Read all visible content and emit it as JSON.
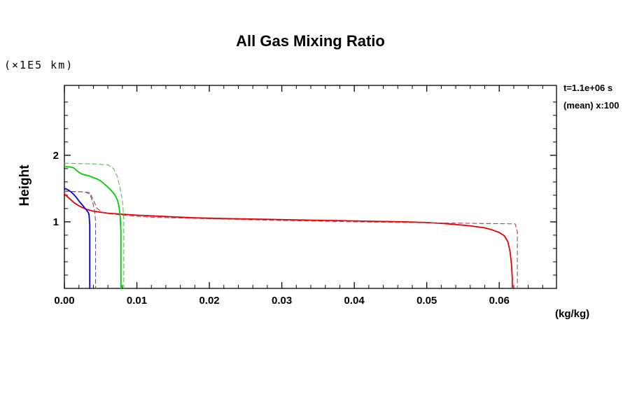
{
  "chart_data": {
    "type": "line",
    "title": "All Gas Mixing Ratio",
    "ylabel": "Height",
    "y_axis_unit": "(×1E5 km)",
    "x_axis_unit": "(kg/kg)",
    "annotations": [
      "t=1.1e+06 s",
      "(mean) x:100"
    ],
    "xlim": [
      0,
      0.0679
    ],
    "ylim": [
      0,
      3.05
    ],
    "xticks": [
      0.0,
      0.01,
      0.02,
      0.03,
      0.04,
      0.05,
      0.06
    ],
    "xtick_labels": [
      "0.00",
      "0.01",
      "0.02",
      "0.03",
      "0.04",
      "0.05",
      "0.06"
    ],
    "x_minor_step": 0.002,
    "yticks": [
      1,
      2
    ],
    "ytick_labels": [
      "1",
      "2"
    ],
    "y_minor_step": 0.2,
    "grid": false,
    "legend": false,
    "axis_color": "#000000",
    "series": [
      {
        "name": "red-gas-solid",
        "color": "#e60000",
        "dash": false,
        "points": [
          [
            0,
            1.42
          ],
          [
            0.0004,
            1.38
          ],
          [
            0.0008,
            1.34
          ],
          [
            0.0013,
            1.29
          ],
          [
            0.002,
            1.24
          ],
          [
            0.003,
            1.19
          ],
          [
            0.004,
            1.16
          ],
          [
            0.006,
            1.13
          ],
          [
            0.008,
            1.115
          ],
          [
            0.01,
            1.1
          ],
          [
            0.014,
            1.08
          ],
          [
            0.018,
            1.06
          ],
          [
            0.022,
            1.05
          ],
          [
            0.027,
            1.04
          ],
          [
            0.032,
            1.03
          ],
          [
            0.037,
            1.02
          ],
          [
            0.042,
            1.01
          ],
          [
            0.047,
            1.0
          ],
          [
            0.05,
            0.99
          ],
          [
            0.053,
            0.97
          ],
          [
            0.056,
            0.94
          ],
          [
            0.058,
            0.91
          ],
          [
            0.059,
            0.88
          ],
          [
            0.06,
            0.84
          ],
          [
            0.0607,
            0.79
          ],
          [
            0.0612,
            0.7
          ],
          [
            0.0615,
            0.55
          ],
          [
            0.0617,
            0.35
          ],
          [
            0.0618,
            0.15
          ],
          [
            0.0618,
            0
          ]
        ]
      },
      {
        "name": "red-gas-mean-dashed",
        "color": "#aa4455",
        "dash": true,
        "points": [
          [
            0,
            1.46
          ],
          [
            0.0025,
            1.45
          ],
          [
            0.0035,
            1.44
          ],
          [
            0.004,
            1.33
          ],
          [
            0.0045,
            1.2
          ],
          [
            0.0055,
            1.13
          ],
          [
            0.008,
            1.1
          ],
          [
            0.012,
            1.07
          ],
          [
            0.02,
            1.045
          ],
          [
            0.03,
            1.02
          ],
          [
            0.04,
            1.0
          ],
          [
            0.05,
            0.985
          ],
          [
            0.058,
            0.975
          ],
          [
            0.0622,
            0.97
          ],
          [
            0.0625,
            0.85
          ],
          [
            0.0625,
            0
          ]
        ]
      },
      {
        "name": "green-gas-solid",
        "color": "#00cc00",
        "dash": false,
        "points": [
          [
            0,
            1.83
          ],
          [
            0.0008,
            1.825
          ],
          [
            0.0013,
            1.81
          ],
          [
            0.0016,
            1.78
          ],
          [
            0.002,
            1.745
          ],
          [
            0.0024,
            1.72
          ],
          [
            0.0028,
            1.705
          ],
          [
            0.0034,
            1.69
          ],
          [
            0.004,
            1.665
          ],
          [
            0.0046,
            1.64
          ],
          [
            0.005,
            1.615
          ],
          [
            0.0054,
            1.58
          ],
          [
            0.0058,
            1.54
          ],
          [
            0.0062,
            1.5
          ],
          [
            0.0066,
            1.455
          ],
          [
            0.007,
            1.4
          ],
          [
            0.0073,
            1.33
          ],
          [
            0.0075,
            1.25
          ],
          [
            0.0076,
            1.17
          ],
          [
            0.0077,
            1.08
          ],
          [
            0.0078,
            0.85
          ],
          [
            0.0078,
            0.45
          ],
          [
            0.0078,
            0
          ]
        ]
      },
      {
        "name": "green-gas-mean-dashed",
        "color": "#55bb55",
        "dash": true,
        "points": [
          [
            0,
            1.88
          ],
          [
            0.004,
            1.87
          ],
          [
            0.006,
            1.855
          ],
          [
            0.0068,
            1.8
          ],
          [
            0.0073,
            1.68
          ],
          [
            0.0077,
            1.5
          ],
          [
            0.008,
            1.32
          ],
          [
            0.0081,
            1.18
          ],
          [
            0.0082,
            1.0
          ],
          [
            0.0082,
            0
          ]
        ]
      },
      {
        "name": "blue-gas-solid",
        "color": "#0000dd",
        "dash": false,
        "points": [
          [
            0,
            1.505
          ],
          [
            0.0005,
            1.48
          ],
          [
            0.0009,
            1.45
          ],
          [
            0.0013,
            1.41
          ],
          [
            0.0017,
            1.36
          ],
          [
            0.0021,
            1.3
          ],
          [
            0.0025,
            1.25
          ],
          [
            0.0028,
            1.21
          ],
          [
            0.0031,
            1.17
          ],
          [
            0.0033,
            1.14
          ],
          [
            0.0034,
            1.11
          ],
          [
            0.0035,
            0.95
          ],
          [
            0.0035,
            0.5
          ],
          [
            0.0035,
            0
          ]
        ]
      },
      {
        "name": "blue-gas-mean-dashed",
        "color": "#555577",
        "dash": true,
        "points": [
          [
            0,
            1.46
          ],
          [
            0.0028,
            1.45
          ],
          [
            0.0035,
            1.42
          ],
          [
            0.0039,
            1.3
          ],
          [
            0.0042,
            1.15
          ],
          [
            0.0043,
            1.0
          ],
          [
            0.0043,
            0
          ]
        ]
      }
    ]
  }
}
